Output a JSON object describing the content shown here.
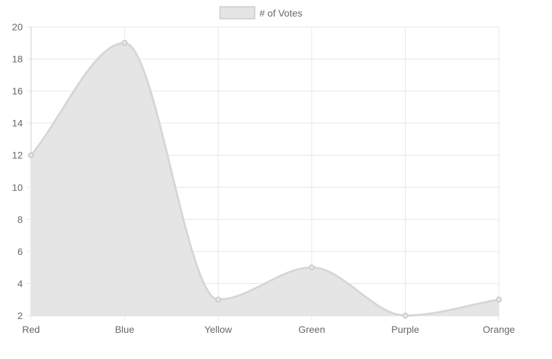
{
  "chart_data": {
    "type": "line",
    "categories": [
      "Red",
      "Blue",
      "Yellow",
      "Green",
      "Purple",
      "Orange"
    ],
    "series": [
      {
        "name": "# of Votes",
        "values": [
          12,
          19,
          3,
          5,
          2,
          3
        ]
      }
    ],
    "ylim": [
      2,
      20
    ],
    "yticks": [
      "2",
      "4",
      "6",
      "8",
      "10",
      "12",
      "14",
      "16",
      "18",
      "20"
    ],
    "fill": true,
    "smooth": true,
    "grid": true,
    "legend_position": "top",
    "colors": {
      "line": "#d6d6d6",
      "fill": "#e5e5e5",
      "point": "#c8c8c8",
      "grid": "#e6e6e6",
      "axis": "#cccccc",
      "text": "#666666"
    }
  }
}
